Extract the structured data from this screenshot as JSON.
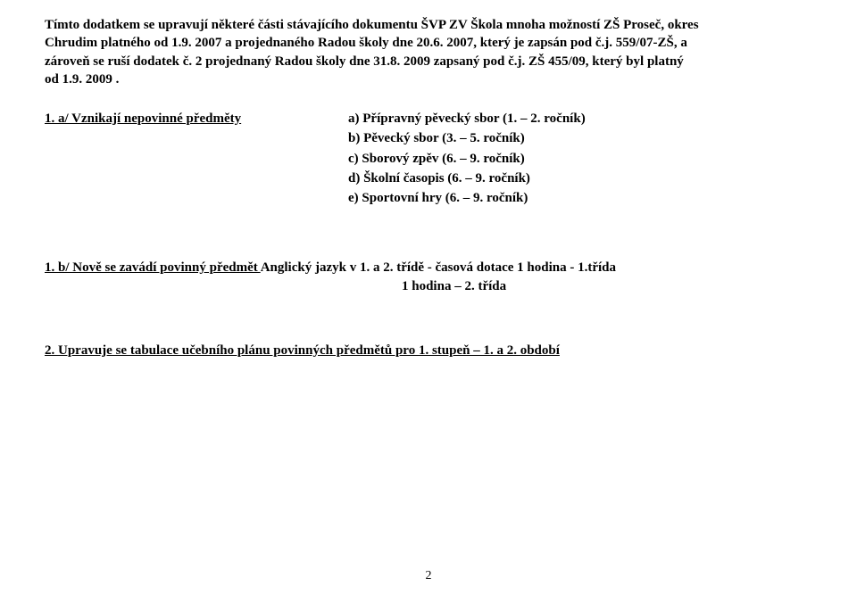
{
  "intro_line1": "Tímto dodatkem se upravují některé části stávajícího dokumentu ŠVP ZV Škola mnoha možností  ZŠ Proseč, okres",
  "intro_line2": "Chrudim  platného od 1.9. 2007 a projednaného Radou školy dne 20.6. 2007, který je  zapsán pod č.j. 559/07-ZŠ, a",
  "intro_line3": "zároveň se ruší dodatek č. 2 projednaný Radou školy dne 31.8. 2009 zapsaný pod č.j.  ZŠ 455/09,  který byl platný",
  "intro_line4": "od 1.9. 2009 .",
  "section1_heading": "1. a/   Vznikají nepovinné předměty",
  "section1_a": "a) Přípravný pěvecký sbor (1. – 2. ročník)",
  "section1_b": "b) Pěvecký sbor (3. – 5. ročník)",
  "section1_c": "c)  Sborový zpěv (6. – 9. ročník)",
  "section1_d": "d) Školní časopis (6. – 9. ročník)",
  "section1_e": "e) Sportovní hry  (6. – 9. ročník)",
  "section1b_prefix": "  1.  b/   Nově se zavádí povinný předmět ",
  "section1b_suffix": "Anglický jazyk v 1. a 2. třídě  - časová dotace 1 hodina - 1.třída",
  "section1b_line2": "1 hodina – 2. třída",
  "section2_underlined": "2.       Upravuje se tabulace učebního plánu  povinných předmětů pro 1. stupeň – 1. a 2. období",
  "pagenum": "2"
}
